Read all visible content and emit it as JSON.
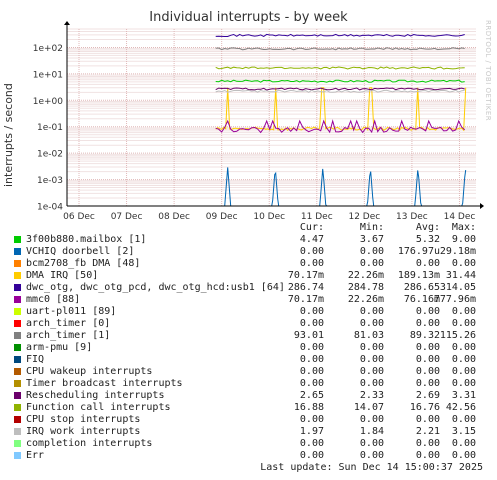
{
  "chart_data": {
    "type": "line",
    "title": "Individual interrupts - by week",
    "ylabel": "interrupts / second",
    "xlabel": "",
    "yscale": "log",
    "ylim": [
      0.0001,
      500
    ],
    "grid": true,
    "watermark": "RRDTOOL / TOBI OETIKER",
    "x_ticks": [
      "06 Dec",
      "07 Dec",
      "08 Dec",
      "09 Dec",
      "10 Dec",
      "11 Dec",
      "12 Dec",
      "13 Dec",
      "14 Dec"
    ],
    "y_ticks": [
      "1e+02",
      "1e+01",
      "1e+00",
      "1e-01",
      "1e-02",
      "1e-03",
      "1e-04"
    ],
    "data_start": "09 Dec",
    "column_headers": [
      "Cur:",
      "Min:",
      "Avg:",
      "Max:"
    ],
    "series": [
      {
        "name": "3f00b880.mailbox [1]",
        "color": "#00cc00",
        "stats": [
          "4.47",
          "3.67",
          "5.32",
          "9.00"
        ],
        "level": 5.32,
        "style": "flat"
      },
      {
        "name": "VCHIQ doorbell [2]",
        "color": "#0066b3",
        "stats": [
          "0.00",
          "0.00",
          "176.97u",
          "29.18m"
        ],
        "level": 0.0001,
        "style": "spikes-low"
      },
      {
        "name": "bcm2708_fb DMA [48]",
        "color": "#ff8000",
        "stats": [
          "0.00",
          "0.00",
          "0.00",
          "0.00"
        ],
        "level": 0,
        "style": "zero"
      },
      {
        "name": "DMA IRQ [50]",
        "color": "#ffcc00",
        "stats": [
          "70.17m",
          "22.26m",
          "189.13m",
          "31.44"
        ],
        "level": 0.08,
        "style": "spikes-high"
      },
      {
        "name": "dwc_otg, dwc_otg_pcd, dwc_otg_hcd:usb1 [64]",
        "color": "#330099",
        "stats": [
          "286.74",
          "284.78",
          "286.65",
          "314.05"
        ],
        "level": 286.65,
        "style": "flat"
      },
      {
        "name": "mmc0 [88]",
        "color": "#990099",
        "stats": [
          "70.17m",
          "22.26m",
          "76.16m",
          "777.96m"
        ],
        "level": 0.075,
        "style": "noisy-low"
      },
      {
        "name": "uart-pl011 [89]",
        "color": "#ccff00",
        "stats": [
          "0.00",
          "0.00",
          "0.00",
          "0.00"
        ],
        "level": 0,
        "style": "zero"
      },
      {
        "name": "arch_timer [0]",
        "color": "#ff0000",
        "stats": [
          "0.00",
          "0.00",
          "0.00",
          "0.00"
        ],
        "level": 0,
        "style": "zero"
      },
      {
        "name": "arch_timer [1]",
        "color": "#808080",
        "stats": [
          "93.01",
          "81.03",
          "89.32",
          "115.26"
        ],
        "level": 89.32,
        "style": "flat"
      },
      {
        "name": "arm-pmu [9]",
        "color": "#008f00",
        "stats": [
          "0.00",
          "0.00",
          "0.00",
          "0.00"
        ],
        "level": 0,
        "style": "zero"
      },
      {
        "name": "FIQ",
        "color": "#00487d",
        "stats": [
          "0.00",
          "0.00",
          "0.00",
          "0.00"
        ],
        "level": 0,
        "style": "zero"
      },
      {
        "name": "CPU wakeup interrupts",
        "color": "#b35a00",
        "stats": [
          "0.00",
          "0.00",
          "0.00",
          "0.00"
        ],
        "level": 0,
        "style": "zero"
      },
      {
        "name": "Timer broadcast interrupts",
        "color": "#b38f00",
        "stats": [
          "0.00",
          "0.00",
          "0.00",
          "0.00"
        ],
        "level": 0,
        "style": "zero"
      },
      {
        "name": "Rescheduling interrupts",
        "color": "#6b006b",
        "stats": [
          "2.65",
          "2.33",
          "2.69",
          "3.31"
        ],
        "level": 2.69,
        "style": "flat"
      },
      {
        "name": "Function call interrupts",
        "color": "#8fb300",
        "stats": [
          "16.88",
          "14.07",
          "16.76",
          "42.56"
        ],
        "level": 16.76,
        "style": "flat"
      },
      {
        "name": "CPU stop interrupts",
        "color": "#b30000",
        "stats": [
          "0.00",
          "0.00",
          "0.00",
          "0.00"
        ],
        "level": 0,
        "style": "zero"
      },
      {
        "name": "IRQ work interrupts",
        "color": "#bebebe",
        "stats": [
          "1.97",
          "1.84",
          "2.21",
          "3.15"
        ],
        "level": 2.21,
        "style": "flat"
      },
      {
        "name": "completion interrupts",
        "color": "#80ff80",
        "stats": [
          "0.00",
          "0.00",
          "0.00",
          "0.00"
        ],
        "level": 0,
        "style": "zero"
      },
      {
        "name": "Err",
        "color": "#80c9ff",
        "stats": [
          "0.00",
          "0.00",
          "0.00",
          "0.00"
        ],
        "level": 0,
        "style": "zero"
      }
    ]
  },
  "footer": "Last update: Sun Dec 14 15:00:37 2025"
}
